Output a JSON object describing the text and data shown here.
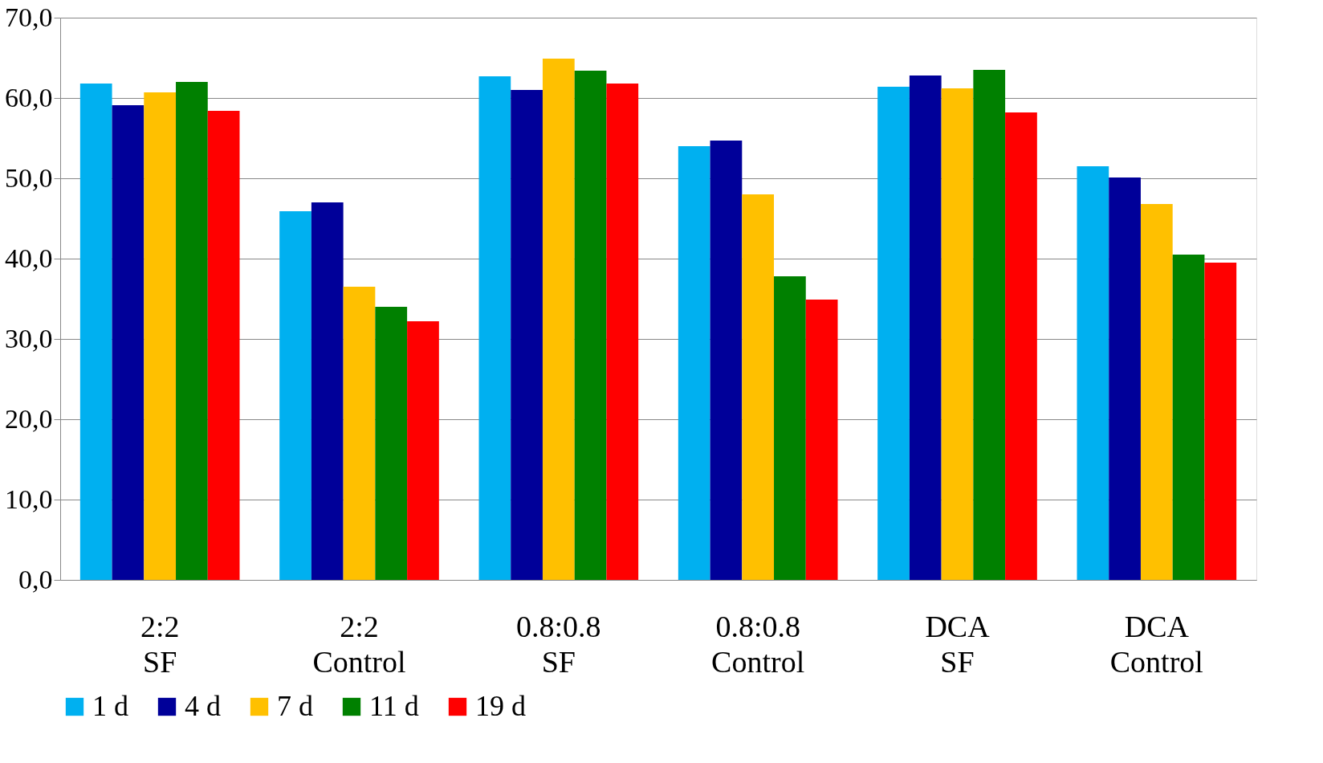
{
  "chart_data": {
    "type": "bar",
    "categories": [
      "2:2\nSF",
      "2:2\nControl",
      "0.8:0.8\nSF",
      "0.8:0.8\nControl",
      "DCA\nSF",
      "DCA\nControl"
    ],
    "series": [
      {
        "name": "1 d",
        "color": "#00b0f0",
        "values": [
          61.8,
          45.9,
          62.7,
          54.0,
          61.4,
          51.5
        ]
      },
      {
        "name": "4 d",
        "color": "#000099",
        "values": [
          59.1,
          47.0,
          61.0,
          54.7,
          62.8,
          50.1
        ]
      },
      {
        "name": "7 d",
        "color": "#ffc000",
        "values": [
          60.7,
          36.5,
          64.9,
          48.0,
          61.2,
          46.8
        ]
      },
      {
        "name": "11 d",
        "color": "#008000",
        "values": [
          62.0,
          34.0,
          63.4,
          37.8,
          63.5,
          40.5
        ]
      },
      {
        "name": "19 d",
        "color": "#ff0000",
        "values": [
          58.4,
          32.2,
          61.8,
          34.9,
          58.2,
          39.5
        ]
      }
    ],
    "ylim": [
      0,
      70
    ],
    "yticks": [
      {
        "value": 0,
        "label": "0,0"
      },
      {
        "value": 10,
        "label": "10,0"
      },
      {
        "value": 20,
        "label": "20,0"
      },
      {
        "value": 30,
        "label": "30,0"
      },
      {
        "value": 40,
        "label": "40,0"
      },
      {
        "value": 50,
        "label": "50,0"
      },
      {
        "value": 60,
        "label": "60,0"
      },
      {
        "value": 70,
        "label": "70,0"
      }
    ],
    "grid": "y",
    "legend": "bottom"
  }
}
